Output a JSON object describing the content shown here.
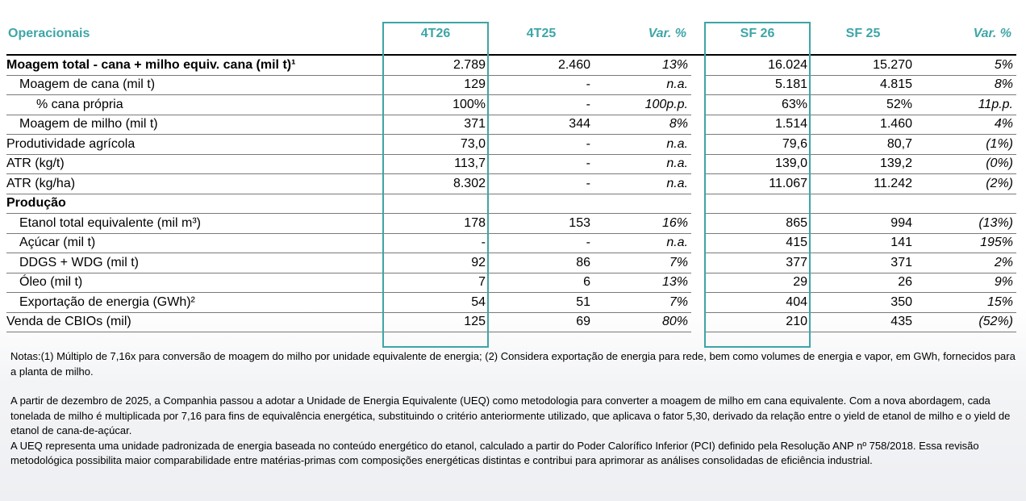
{
  "table": {
    "header": {
      "label": "Operacionais",
      "col1": "4T26",
      "col2": "4T25",
      "col3": "Var. %",
      "col5": "SF 26",
      "col6": "SF 25",
      "col7": "Var. %"
    },
    "rows": [
      {
        "label": "Moagem total - cana + milho equiv. cana (mil t)¹",
        "v1": "2.789",
        "v2": "2.460",
        "v3": "13%",
        "v5": "16.024",
        "v6": "15.270",
        "v7": "5%"
      },
      {
        "label": "Moagem de cana (mil t)",
        "v1": "129",
        "v2": "-",
        "v3": "n.a.",
        "v5": "5.181",
        "v6": "4.815",
        "v7": "8%"
      },
      {
        "label": "% cana própria",
        "v1": "100%",
        "v2": "-",
        "v3": "100p.p.",
        "v5": "63%",
        "v6": "52%",
        "v7": "11p.p."
      },
      {
        "label": "Moagem de milho (mil t)",
        "v1": "371",
        "v2": "344",
        "v3": "8%",
        "v5": "1.514",
        "v6": "1.460",
        "v7": "4%"
      },
      {
        "label": "Produtividade agrícola",
        "v1": "73,0",
        "v2": "-",
        "v3": "n.a.",
        "v5": "79,6",
        "v6": "80,7",
        "v7": "(1%)"
      },
      {
        "label": "ATR (kg/t)",
        "v1": "113,7",
        "v2": "-",
        "v3": "n.a.",
        "v5": "139,0",
        "v6": "139,2",
        "v7": "(0%)"
      },
      {
        "label": "ATR (kg/ha)",
        "v1": "8.302",
        "v2": "-",
        "v3": "n.a.",
        "v5": "11.067",
        "v6": "11.242",
        "v7": "(2%)"
      },
      {
        "label": "Produção",
        "v1": "",
        "v2": "",
        "v3": "",
        "v5": "",
        "v6": "",
        "v7": ""
      },
      {
        "label": "Etanol total equivalente (mil m³)",
        "v1": "178",
        "v2": "153",
        "v3": "16%",
        "v5": "865",
        "v6": "994",
        "v7": "(13%)"
      },
      {
        "label": "Açúcar (mil t)",
        "v1": "-",
        "v2": "-",
        "v3": "n.a.",
        "v5": "415",
        "v6": "141",
        "v7": "195%"
      },
      {
        "label": "DDGS + WDG (mil t)",
        "v1": "92",
        "v2": "86",
        "v3": "7%",
        "v5": "377",
        "v6": "371",
        "v7": "2%"
      },
      {
        "label": "Óleo (mil t)",
        "v1": "7",
        "v2": "6",
        "v3": "13%",
        "v5": "29",
        "v6": "26",
        "v7": "9%"
      },
      {
        "label": "Exportação de energia (GWh)²",
        "v1": "54",
        "v2": "51",
        "v3": "7%",
        "v5": "404",
        "v6": "350",
        "v7": "15%"
      },
      {
        "label": "Venda de CBIOs (mil)",
        "v1": "125",
        "v2": "69",
        "v3": "80%",
        "v5": "210",
        "v6": "435",
        "v7": "(52%)"
      }
    ]
  },
  "notes": {
    "footnotes": "Notas:(1) Múltiplo de 7,16x para conversão de moagem do milho por unidade equivalente de energia; (2) Considera exportação de energia para rede, bem como volumes de energia e vapor, em GWh, fornecidos para a planta de milho.",
    "paragraph1": "A partir de dezembro de 2025, a Companhia passou a adotar a Unidade de Energia Equivalente (UEQ) como metodologia para converter a moagem de milho em cana equivalente. Com a nova abordagem, cada tonelada de milho é multiplicada por 7,16 para fins de equivalência energética, substituindo o critério anteriormente utilizado, que aplicava o fator 5,30, derivado da relação entre o yield de etanol de milho e o yield de etanol de cana-de-açúcar.",
    "paragraph2": "A UEQ representa uma unidade padronizada de energia baseada no conteúdo energético do etanol, calculado a partir do Poder Calorífico Inferior (PCI) definido pela Resolução ANP nº 758/2018. Essa revisão metodológica possibilita maior comparabilidade entre matérias-primas com composições energéticas distintas e contribui para aprimorar as análises consolidadas de eficiência industrial."
  },
  "colors": {
    "accent": "#3ea5a7"
  }
}
